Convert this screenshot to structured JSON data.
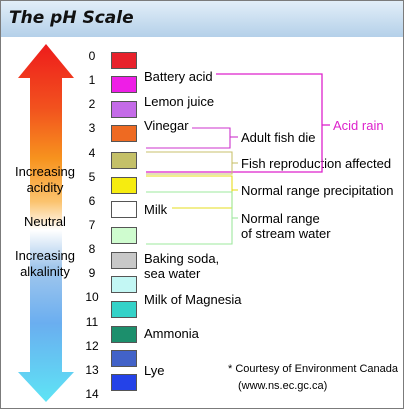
{
  "title": "The pH Scale",
  "scale_numbers": [
    "0",
    "1",
    "2",
    "3",
    "4",
    "5",
    "6",
    "7",
    "8",
    "9",
    "10",
    "11",
    "12",
    "13",
    "14"
  ],
  "swatches": [
    {
      "color": "#e8212b"
    },
    {
      "color": "#ee1ee6"
    },
    {
      "color": "#c46be8"
    },
    {
      "color": "#ee6a22"
    },
    {
      "color": "#c4c068"
    },
    {
      "color": "#f6ec10"
    },
    {
      "color": "#ffffff"
    },
    {
      "color": "#cffccf"
    },
    {
      "color": "#c8c8c8"
    },
    {
      "color": "#c3f7f4"
    },
    {
      "color": "#34d2c8"
    },
    {
      "color": "#1c8f6c"
    },
    {
      "color": "#ffffff"
    },
    {
      "color": "#4262c8"
    },
    {
      "color": "#2442e8"
    }
  ],
  "substances": {
    "battery_acid": "Battery acid",
    "lemon_juice": "Lemon juice",
    "vinegar": "Vinegar",
    "milk": "Milk",
    "baking_soda_1": "Baking soda,",
    "baking_soda_2": "sea water",
    "milk_of_magnesia": "Milk of Magnesia",
    "ammonia": "Ammonia",
    "lye": "Lye"
  },
  "ranges": {
    "acid_rain": "Acid rain",
    "adult_fish_die": "Adult fish die",
    "fish_reproduction": "Fish reproduction affected",
    "normal_precip": "Normal range precipitation",
    "stream_1": "Normal range",
    "stream_2": "of stream water"
  },
  "arrow": {
    "acidity_1": "Increasing",
    "acidity_2": "acidity",
    "neutral": "Neutral",
    "alkalinity_1": "Increasing",
    "alkalinity_2": "alkalinity"
  },
  "footnote": {
    "line1": "* Courtesy of Environment Canada",
    "line2": "(www.ns.ec.gc.ca)"
  },
  "colors": {
    "acid_rain": "#dd22cc",
    "fish": "#cc33cc",
    "reproduction": "#c9c26e",
    "precipitation": "#e6dc1e",
    "stream": "#9ee89e"
  }
}
